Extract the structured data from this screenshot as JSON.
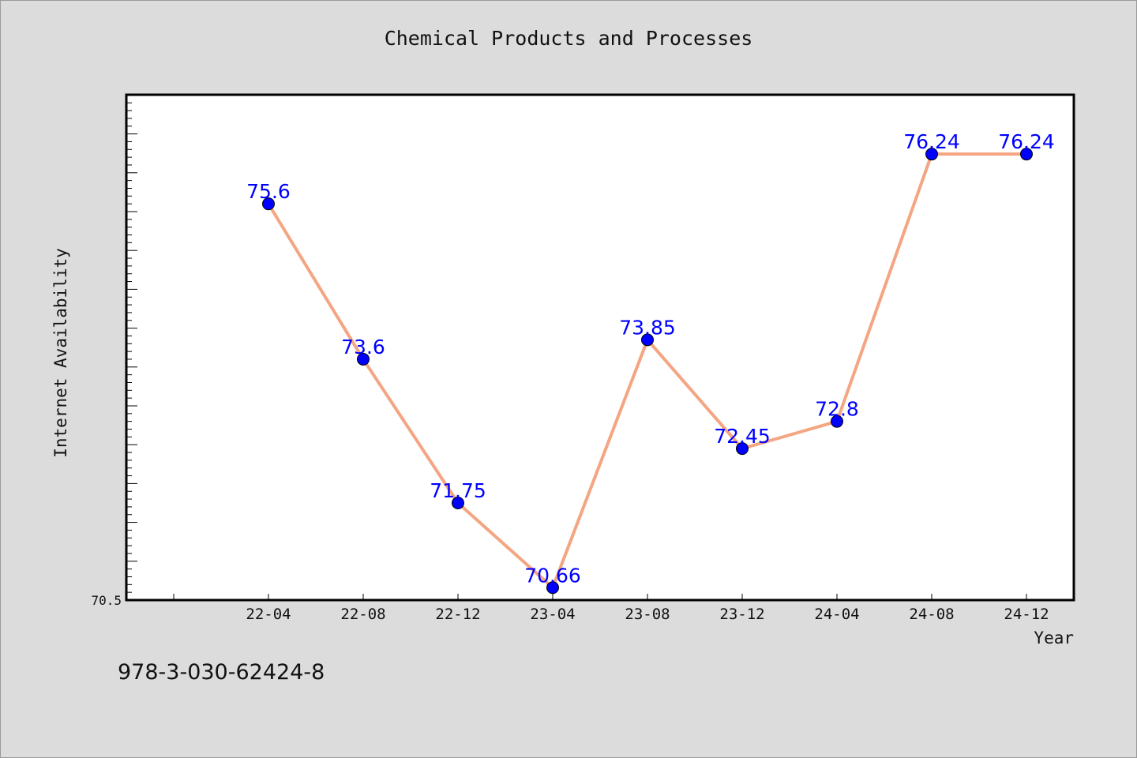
{
  "chart_data": {
    "type": "line",
    "title": "Chemical Products and Processes",
    "xlabel": "Year",
    "ylabel": "Internet Availability",
    "categories": [
      "22-04",
      "22-08",
      "22-12",
      "23-04",
      "23-08",
      "23-12",
      "24-04",
      "24-08",
      "24-12"
    ],
    "series": [
      {
        "values": [
          75.6,
          73.6,
          71.75,
          70.66,
          73.85,
          72.45,
          72.8,
          76.24,
          76.24
        ],
        "labels": [
          "75.6",
          "73.6",
          "71.75",
          "70.66",
          "73.85",
          "72.45",
          "72.8",
          "76.24",
          "76.24"
        ],
        "line_color": "#f4a582",
        "marker_color": "#0000ff"
      }
    ],
    "ylim": [
      70.5,
      77
    ],
    "ytick_labels": [
      "70.5"
    ],
    "grid": false
  },
  "footer_text": "978-3-030-62424-8"
}
